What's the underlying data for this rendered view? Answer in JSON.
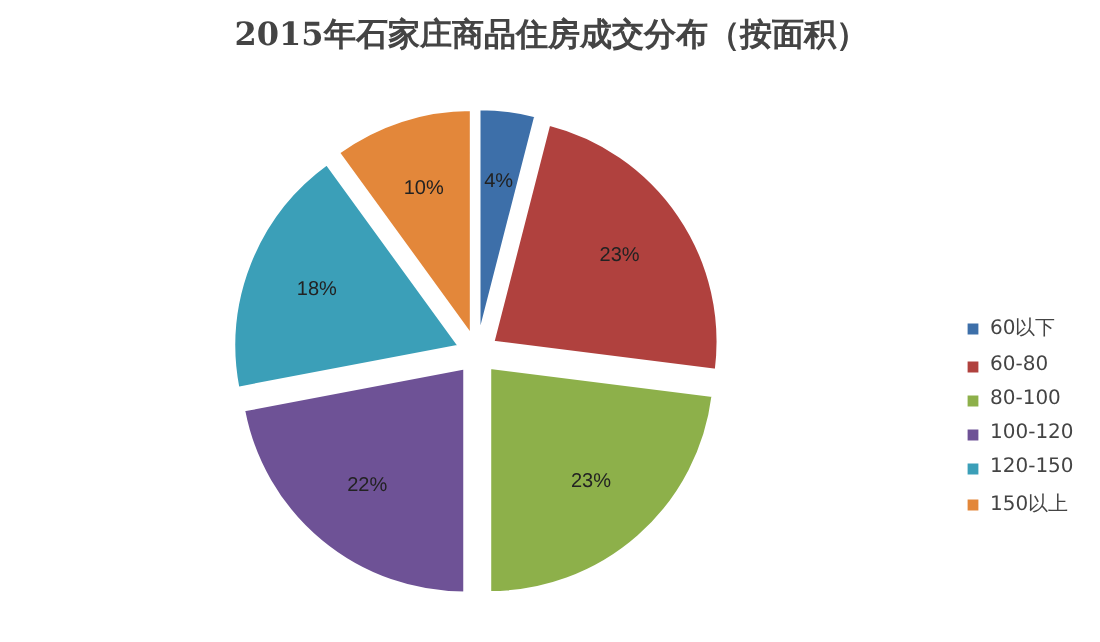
{
  "chart_data": {
    "type": "pie",
    "title": "2015年石家庄商品住房成交分布（按面积）",
    "categories": [
      "60以下",
      "60-80",
      "80-100",
      "100-120",
      "120-150",
      "150以上"
    ],
    "values": [
      4,
      23,
      23,
      22,
      18,
      10
    ],
    "value_labels": [
      "4%",
      "23%",
      "23%",
      "22%",
      "18%",
      "10%"
    ],
    "colors": [
      "#3d6fa9",
      "#b0413e",
      "#8db04a",
      "#6e5296",
      "#3b9fb8",
      "#e3873a"
    ],
    "legend": "right"
  }
}
